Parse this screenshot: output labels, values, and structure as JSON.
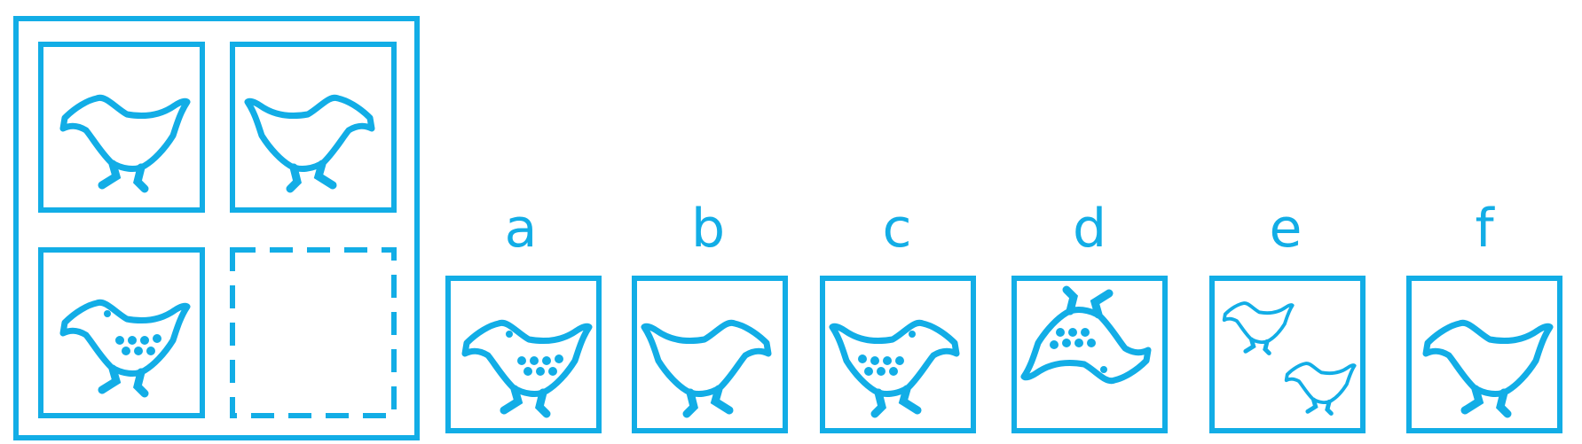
{
  "colors": {
    "accent": "#12ade6",
    "background": "#ffffff"
  },
  "puzzle": {
    "cells": [
      {
        "icon": "bird-facing-left-icon"
      },
      {
        "icon": "bird-facing-right-icon"
      },
      {
        "icon": "bird-spotted-facing-left-icon"
      },
      {
        "icon": "missing-piece-placeholder"
      }
    ]
  },
  "options": [
    {
      "label": "a",
      "icon": "bird-spotted-facing-left-icon"
    },
    {
      "label": "b",
      "icon": "bird-facing-right-icon"
    },
    {
      "label": "c",
      "icon": "bird-spotted-facing-right-icon"
    },
    {
      "label": "d",
      "icon": "bird-spotted-upside-down-icon"
    },
    {
      "label": "e",
      "icon": "two-small-birds-icon"
    },
    {
      "label": "f",
      "icon": "bird-facing-left-icon"
    }
  ]
}
